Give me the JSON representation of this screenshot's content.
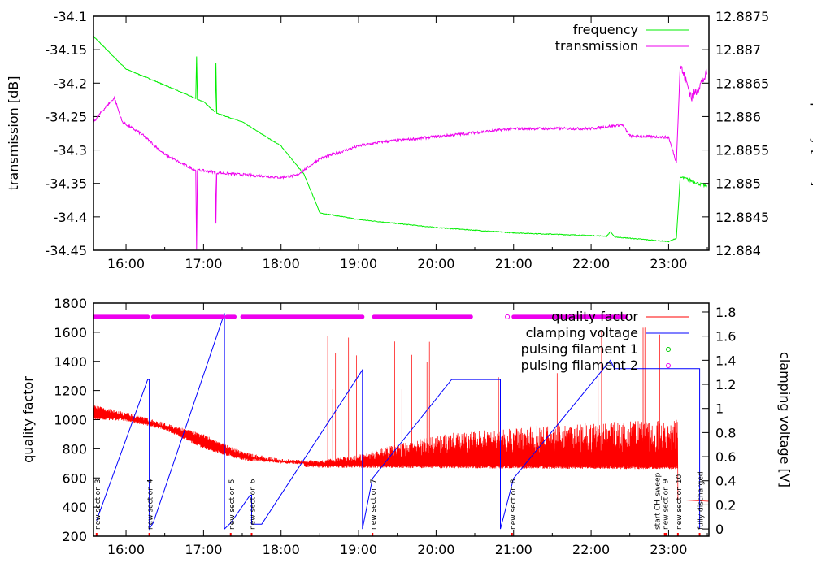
{
  "chart_data": [
    {
      "type": "line",
      "ylabel": "transmission [dB]",
      "y2label": "frequency [GHz]",
      "xlim": [
        15.58,
        23.52
      ],
      "ylim": [
        -34.45,
        -34.1
      ],
      "y2lim": [
        12.884,
        12.8875
      ],
      "xticks": [
        "16:00",
        "17:00",
        "18:00",
        "19:00",
        "20:00",
        "21:00",
        "22:00",
        "23:00"
      ],
      "yticks": [
        "-34.1",
        "-34.15",
        "-34.2",
        "-34.25",
        "-34.3",
        "-34.35",
        "-34.4",
        "-34.45"
      ],
      "y2ticks": [
        "12.8875",
        "12.887",
        "12.8865",
        "12.886",
        "12.8855",
        "12.885",
        "12.8845",
        "12.884"
      ],
      "legend_position": "top-right",
      "series": [
        {
          "name": "frequency",
          "axis": "y2",
          "color": "#00ee00",
          "points": [
            [
              15.58,
              12.8872
            ],
            [
              15.75,
              12.887
            ],
            [
              16.0,
              12.88671
            ],
            [
              16.5,
              12.88647
            ],
            [
              16.9,
              12.88627
            ],
            [
              16.91,
              12.8869
            ],
            [
              16.92,
              12.88626
            ],
            [
              17.0,
              12.88622
            ],
            [
              17.15,
              12.88607
            ],
            [
              17.16,
              12.8868
            ],
            [
              17.17,
              12.88605
            ],
            [
              17.5,
              12.88592
            ],
            [
              18.0,
              12.88556
            ],
            [
              18.3,
              12.88513
            ],
            [
              18.5,
              12.88456
            ],
            [
              19.0,
              12.88446
            ],
            [
              20.0,
              12.88434
            ],
            [
              21.0,
              12.88426
            ],
            [
              22.0,
              12.88422
            ],
            [
              22.2,
              12.88421
            ],
            [
              22.25,
              12.88428
            ],
            [
              22.3,
              12.8842
            ],
            [
              23.0,
              12.88413
            ],
            [
              23.1,
              12.88418
            ],
            [
              23.15,
              12.88509
            ],
            [
              23.2,
              12.88508
            ],
            [
              23.5,
              12.88495
            ]
          ]
        },
        {
          "name": "transmission",
          "axis": "y",
          "color": "#ee00ee",
          "points": [
            [
              15.58,
              -34.258
            ],
            [
              15.75,
              -34.234
            ],
            [
              15.85,
              -34.222
            ],
            [
              15.95,
              -34.258
            ],
            [
              16.2,
              -34.276
            ],
            [
              16.5,
              -34.307
            ],
            [
              16.8,
              -34.325
            ],
            [
              16.9,
              -34.33
            ],
            [
              16.91,
              -34.45
            ],
            [
              16.92,
              -34.33
            ],
            [
              17.0,
              -34.331
            ],
            [
              17.15,
              -34.333
            ],
            [
              17.16,
              -34.41
            ],
            [
              17.17,
              -34.334
            ],
            [
              17.5,
              -34.337
            ],
            [
              18.0,
              -34.341
            ],
            [
              18.2,
              -34.338
            ],
            [
              18.5,
              -34.313
            ],
            [
              19.0,
              -34.294
            ],
            [
              19.3,
              -34.288
            ],
            [
              20.0,
              -34.28
            ],
            [
              21.0,
              -34.268
            ],
            [
              22.0,
              -34.268
            ],
            [
              22.4,
              -34.262
            ],
            [
              22.5,
              -34.279
            ],
            [
              23.0,
              -34.281
            ],
            [
              23.1,
              -34.319
            ],
            [
              23.15,
              -34.173
            ],
            [
              23.3,
              -34.222
            ],
            [
              23.5,
              -34.185
            ]
          ]
        }
      ]
    },
    {
      "type": "line",
      "ylabel": "quality factor",
      "y2label": "clamping voltage [V]",
      "xlim": [
        15.58,
        23.52
      ],
      "ylim": [
        200,
        1800
      ],
      "y2lim": [
        -0.06,
        1.874
      ],
      "xticks": [
        "16:00",
        "17:00",
        "18:00",
        "19:00",
        "20:00",
        "21:00",
        "22:00",
        "23:00"
      ],
      "yticks": [
        "1800",
        "1600",
        "1400",
        "1200",
        "1000",
        "800",
        "600",
        "400",
        "200"
      ],
      "y2ticks": [
        "1.8",
        "1.6",
        "1.4",
        "1.2",
        "1",
        "0.8",
        "0.6",
        "0.4",
        "0.2",
        "0"
      ],
      "legend_position": "top-right",
      "series": [
        {
          "name": "quality factor",
          "axis": "y",
          "color": "#ff0000",
          "envelope": [
            [
              15.58,
              1100
            ],
            [
              16.0,
              1050
            ],
            [
              16.5,
              980
            ],
            [
              17.0,
              900
            ],
            [
              17.5,
              780
            ],
            [
              18.0,
              730
            ],
            [
              18.5,
              720
            ],
            [
              19.0,
              760
            ],
            [
              20.0,
              900
            ],
            [
              21.0,
              950
            ],
            [
              22.0,
              980
            ],
            [
              23.1,
              1000
            ]
          ],
          "floor": [
            [
              15.58,
              1000
            ],
            [
              16.0,
              990
            ],
            [
              16.5,
              930
            ],
            [
              17.0,
              800
            ],
            [
              17.5,
              720
            ],
            [
              18.0,
              700
            ],
            [
              18.5,
              690
            ],
            [
              23.1,
              680
            ]
          ],
          "tail": [
            [
              23.12,
              450
            ],
            [
              23.52,
              440
            ]
          ]
        },
        {
          "name": "clamping voltage",
          "axis": "y2",
          "color": "#0000ff",
          "points": [
            [
              15.62,
              0.07
            ],
            [
              16.28,
              1.24
            ],
            [
              16.3,
              1.24
            ],
            [
              16.3,
              0
            ],
            [
              16.35,
              0.05
            ],
            [
              17.27,
              1.79
            ],
            [
              17.27,
              0
            ],
            [
              17.35,
              0.05
            ],
            [
              17.6,
              0.28
            ],
            [
              17.62,
              0.28
            ],
            [
              17.62,
              0.04
            ],
            [
              17.75,
              0.04
            ],
            [
              19.05,
              1.32
            ],
            [
              19.05,
              0
            ],
            [
              19.18,
              0.42
            ],
            [
              20.2,
              1.24
            ],
            [
              20.83,
              1.24
            ],
            [
              20.83,
              0
            ],
            [
              21.0,
              0.42
            ],
            [
              22.25,
              1.4
            ],
            [
              22.3,
              1.33
            ],
            [
              23.4,
              1.33
            ],
            [
              23.4,
              0
            ]
          ]
        },
        {
          "name": "pulsing filament 1",
          "axis": "y2",
          "color": "#00cc00",
          "segments": []
        },
        {
          "name": "pulsing filament 2",
          "axis": "y2",
          "color": "#ee00ee",
          "level": 1.76,
          "segments": [
            [
              15.58,
              16.28
            ],
            [
              16.35,
              17.25
            ],
            [
              17.3,
              17.4
            ],
            [
              17.5,
              19.05
            ],
            [
              19.2,
              20.45
            ],
            [
              20.92,
              20.92
            ],
            [
              21.0,
              22.45
            ]
          ]
        }
      ],
      "annotations": [
        {
          "t": 15.62,
          "text": "new section 3"
        },
        {
          "t": 16.3,
          "text": "new section 4"
        },
        {
          "t": 17.35,
          "text": "new section 5"
        },
        {
          "t": 17.62,
          "text": "new section 6"
        },
        {
          "t": 19.18,
          "text": "new section 7"
        },
        {
          "t": 20.98,
          "text": "new section 8"
        },
        {
          "t": 22.95,
          "text": "new section 9"
        },
        {
          "t": 22.97,
          "text": "start CH_sweep"
        },
        {
          "t": 23.12,
          "text": "new section 10"
        },
        {
          "t": 23.4,
          "text": "fully discharged"
        }
      ]
    }
  ]
}
